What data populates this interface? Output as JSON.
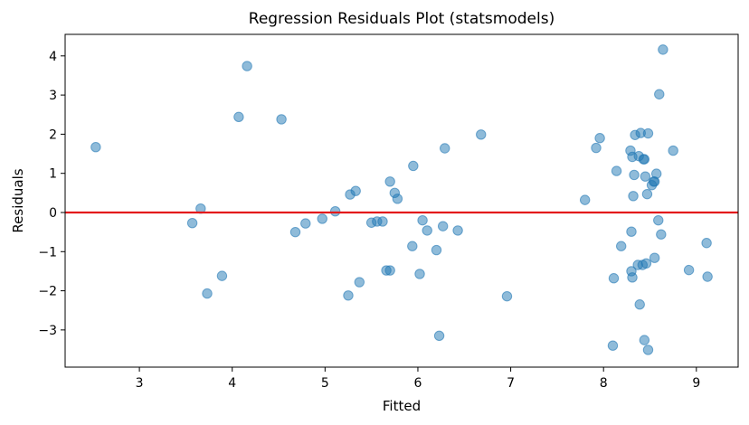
{
  "chart_data": {
    "type": "scatter",
    "title": "Regression Residuals Plot (statsmodels)",
    "xlabel": "Fitted",
    "ylabel": "Residuals",
    "xlim": [
      2.2,
      9.45
    ],
    "ylim": [
      -3.95,
      4.55
    ],
    "xticks": [
      3,
      4,
      5,
      6,
      7,
      8,
      9
    ],
    "yticks": [
      -3,
      -2,
      -1,
      0,
      1,
      2,
      3,
      4
    ],
    "grid": false,
    "reference_line": {
      "y": 0,
      "color": "#e31a1c"
    },
    "point_color": "#1f77b4",
    "point_alpha": 0.5,
    "points": [
      {
        "x": 2.53,
        "y": 1.67
      },
      {
        "x": 3.57,
        "y": -0.27
      },
      {
        "x": 3.66,
        "y": 0.1
      },
      {
        "x": 3.73,
        "y": -2.07
      },
      {
        "x": 3.89,
        "y": -1.62
      },
      {
        "x": 4.07,
        "y": 2.44
      },
      {
        "x": 4.16,
        "y": 3.74
      },
      {
        "x": 4.53,
        "y": 2.38
      },
      {
        "x": 4.68,
        "y": -0.5
      },
      {
        "x": 4.79,
        "y": -0.28
      },
      {
        "x": 4.97,
        "y": -0.16
      },
      {
        "x": 5.11,
        "y": 0.03
      },
      {
        "x": 5.25,
        "y": -2.12
      },
      {
        "x": 5.27,
        "y": 0.46
      },
      {
        "x": 5.33,
        "y": 0.55
      },
      {
        "x": 5.37,
        "y": -1.78
      },
      {
        "x": 5.5,
        "y": -0.26
      },
      {
        "x": 5.56,
        "y": -0.23
      },
      {
        "x": 5.62,
        "y": -0.23
      },
      {
        "x": 5.66,
        "y": -1.48
      },
      {
        "x": 5.7,
        "y": 0.79
      },
      {
        "x": 5.7,
        "y": -1.48
      },
      {
        "x": 5.75,
        "y": 0.5
      },
      {
        "x": 5.78,
        "y": 0.35
      },
      {
        "x": 5.94,
        "y": -0.86
      },
      {
        "x": 5.95,
        "y": 1.19
      },
      {
        "x": 6.02,
        "y": -1.57
      },
      {
        "x": 6.05,
        "y": -0.2
      },
      {
        "x": 6.1,
        "y": -0.46
      },
      {
        "x": 6.2,
        "y": -0.96
      },
      {
        "x": 6.23,
        "y": -3.15
      },
      {
        "x": 6.27,
        "y": -0.35
      },
      {
        "x": 6.29,
        "y": 1.64
      },
      {
        "x": 6.43,
        "y": -0.46
      },
      {
        "x": 6.68,
        "y": 1.99
      },
      {
        "x": 6.96,
        "y": -2.14
      },
      {
        "x": 7.8,
        "y": 0.32
      },
      {
        "x": 7.92,
        "y": 1.65
      },
      {
        "x": 7.96,
        "y": 1.9
      },
      {
        "x": 8.1,
        "y": -3.4
      },
      {
        "x": 8.11,
        "y": -1.68
      },
      {
        "x": 8.14,
        "y": 1.06
      },
      {
        "x": 8.19,
        "y": -0.86
      },
      {
        "x": 8.29,
        "y": 1.58
      },
      {
        "x": 8.3,
        "y": -0.49
      },
      {
        "x": 8.3,
        "y": -1.5
      },
      {
        "x": 8.31,
        "y": 1.42
      },
      {
        "x": 8.31,
        "y": -1.66
      },
      {
        "x": 8.32,
        "y": 0.42
      },
      {
        "x": 8.33,
        "y": 0.96
      },
      {
        "x": 8.34,
        "y": 1.98
      },
      {
        "x": 8.37,
        "y": -1.34
      },
      {
        "x": 8.38,
        "y": 1.44
      },
      {
        "x": 8.39,
        "y": -2.35
      },
      {
        "x": 8.4,
        "y": 2.03
      },
      {
        "x": 8.42,
        "y": -1.34
      },
      {
        "x": 8.43,
        "y": 1.36
      },
      {
        "x": 8.44,
        "y": 1.36
      },
      {
        "x": 8.44,
        "y": -3.26
      },
      {
        "x": 8.45,
        "y": 0.92
      },
      {
        "x": 8.46,
        "y": -1.3
      },
      {
        "x": 8.47,
        "y": 0.47
      },
      {
        "x": 8.48,
        "y": -3.51
      },
      {
        "x": 8.48,
        "y": 2.02
      },
      {
        "x": 8.52,
        "y": 0.7
      },
      {
        "x": 8.54,
        "y": 0.79
      },
      {
        "x": 8.55,
        "y": -1.16
      },
      {
        "x": 8.55,
        "y": 0.79
      },
      {
        "x": 8.57,
        "y": 0.99
      },
      {
        "x": 8.59,
        "y": -0.2
      },
      {
        "x": 8.6,
        "y": 3.02
      },
      {
        "x": 8.62,
        "y": -0.56
      },
      {
        "x": 8.64,
        "y": 4.16
      },
      {
        "x": 8.75,
        "y": 1.58
      },
      {
        "x": 8.92,
        "y": -1.47
      },
      {
        "x": 9.11,
        "y": -0.78
      },
      {
        "x": 9.12,
        "y": -1.64
      }
    ]
  }
}
